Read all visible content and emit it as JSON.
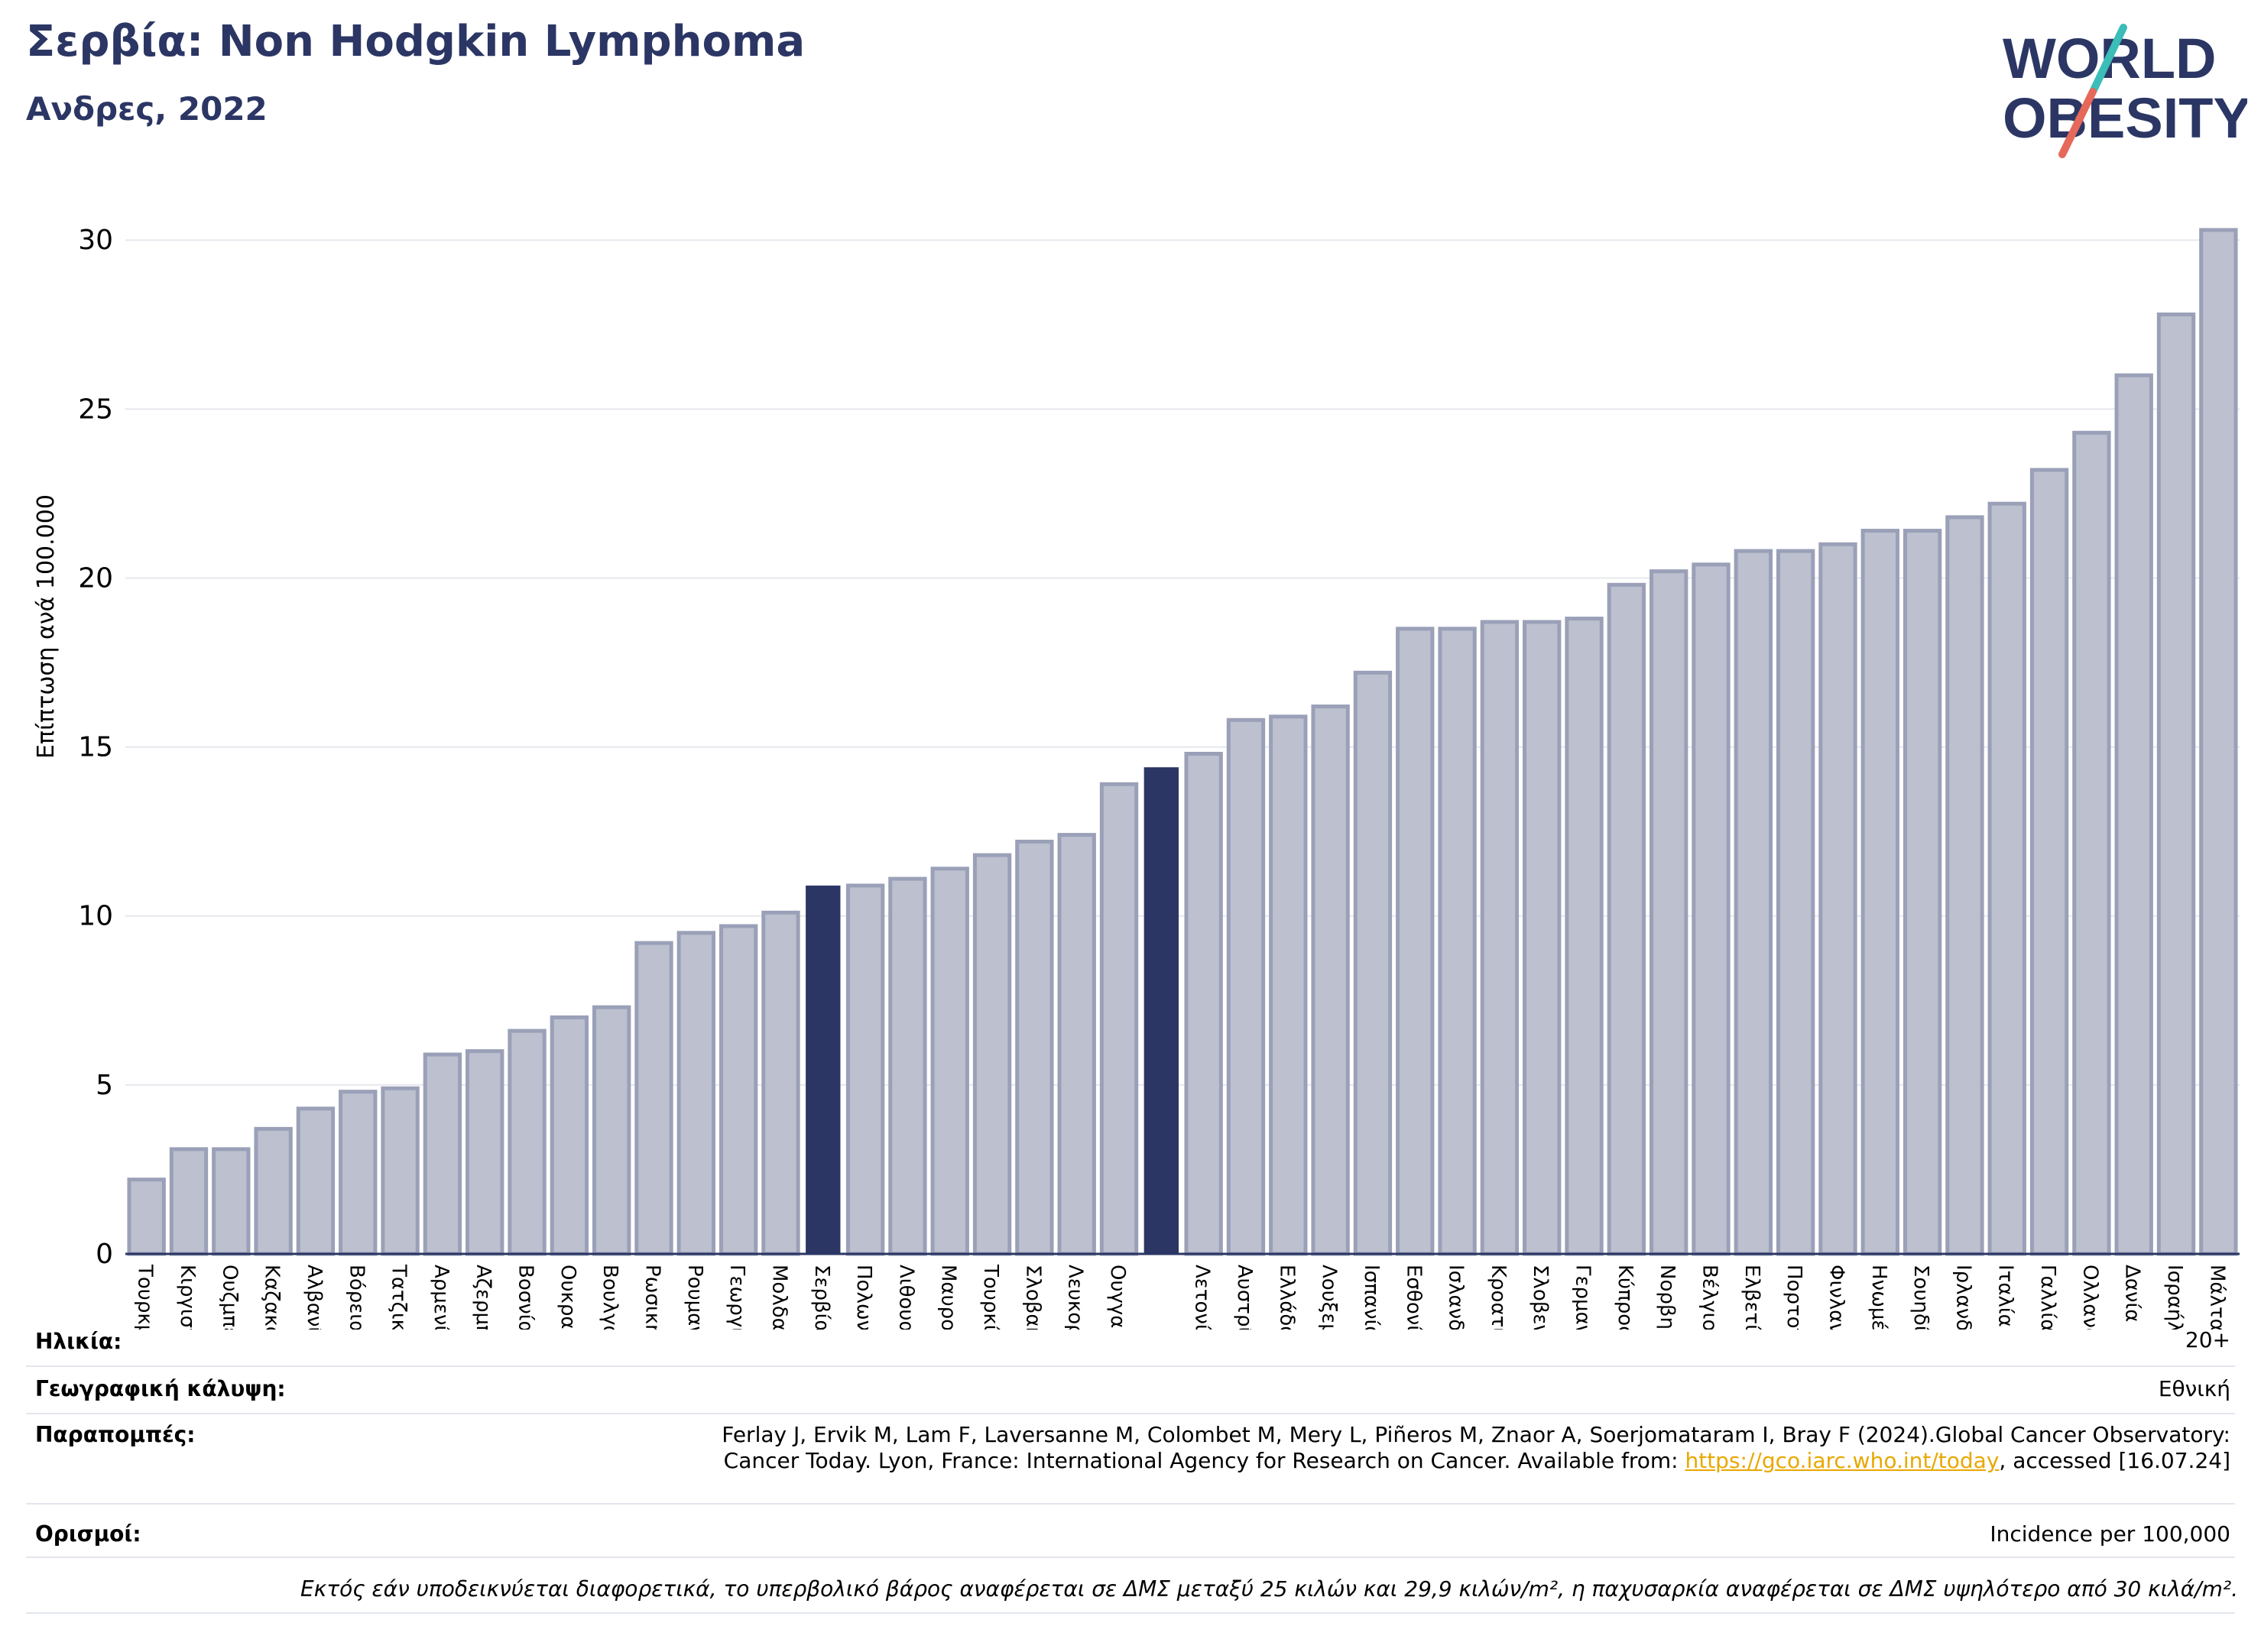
{
  "header": {
    "title": "Σερβία: Non Hodgkin Lymphoma",
    "subtitle": "Ανδρες, 2022",
    "logo_line1": "WORLD",
    "logo_line2": "OBESITY"
  },
  "colors": {
    "title": "#2b3664",
    "bar": "#bcc0cf",
    "bar_edge": "#9aa0b7",
    "bar_highlight": "#2b3664",
    "grid": "#e6e8ee",
    "logo_teal": "#3bbdb8",
    "logo_red": "#e5685a",
    "link": "#e8a800"
  },
  "chart_data": {
    "type": "bar",
    "ylabel": "Επίπτωση ανά 100.000",
    "ylim": [
      0,
      31
    ],
    "yticks": [
      0,
      5,
      10,
      15,
      20,
      25,
      30
    ],
    "grid": true,
    "categories": [
      "Τουρκμενιστάν",
      "Κιργιστάν",
      "Ουζμπεκιστάν",
      "Καζακστάν",
      "Αλβανία",
      "Βόρεια Μακεδονία",
      "Τατζικιστάν",
      "Αρμενία",
      "Αζερμπαϊτζάν",
      "Βοσνία και Ερζεγοβίνη",
      "Ουκρανία",
      "Βουλγαρία",
      "Ρωσική Ομοσπονδία",
      "Ρουμανία",
      "Γεωργία",
      "Μολδαβία",
      "Σερβία",
      "Πολωνία",
      "Λιθουανία",
      "Μαυροβούνιο",
      "Τουρκία",
      "Σλοβακία",
      "Λευκορωσία",
      "Ουγγαρία",
      "",
      "Λετονία",
      "Αυστρία",
      "Ελλάδα",
      "Λουξεμβούργο",
      "Ισπανία",
      "Εσθονία",
      "Ισλανδία",
      "Κροατία",
      "Σλοβενία",
      "Γερμανία",
      "Κύπρος",
      "Νορβηγία",
      "Βέλγιο",
      "Ελβετία",
      "Πορτογαλία",
      "Φινλανδία",
      "Ηνωμένο Βασίλειο",
      "Σουηδία",
      "Ιρλανδία",
      "Ιταλία",
      "Γαλλία",
      "Ολλανδία",
      "Δανία",
      "Ισραήλ",
      "Μάλτα"
    ],
    "values": [
      2.2,
      3.1,
      3.1,
      3.7,
      4.3,
      4.8,
      4.9,
      5.9,
      6.0,
      6.6,
      7.0,
      7.3,
      9.2,
      9.5,
      9.7,
      10.1,
      10.9,
      10.9,
      11.1,
      11.4,
      11.8,
      12.2,
      12.4,
      13.9,
      14.4,
      14.8,
      15.8,
      15.9,
      16.2,
      17.2,
      18.5,
      18.5,
      18.7,
      18.7,
      18.8,
      19.8,
      20.2,
      20.4,
      20.8,
      20.8,
      21.0,
      21.4,
      21.4,
      21.8,
      22.2,
      23.2,
      24.3,
      26.0,
      27.8,
      30.3
    ],
    "highlight": [
      16,
      24
    ]
  },
  "meta": {
    "age_label": "Ηλικία:",
    "age_value": "20+",
    "coverage_label": "Γεωγραφική κάλυψη:",
    "coverage_value": "Εθνική",
    "refs_label": "Παραπομπές:",
    "refs_line1": "Ferlay J, Ervik M, Lam F, Laversanne M, Colombet M, Mery L, Piñeros M, Znaor A, Soerjomataram I, Bray F (2024).Global Cancer Observatory:",
    "refs_line2_pre": "Cancer Today. Lyon, France: International Agency for Research on Cancer. Available from: ",
    "refs_link": "https://gco.iarc.who.int/today",
    "refs_line2_post": ", accessed [16.07.24]",
    "defs_label": "Ορισμοί:",
    "defs_value": "Incidence per 100,000",
    "footnote": "Εκτός εάν υποδεικνύεται διαφορετικά, το υπερβολικό βάρος αναφέρεται σε ΔΜΣ μεταξύ 25 κιλών και 29,9 κιλών/m², η παχυσαρκία αναφέρεται σε ΔΜΣ υψηλότερο από 30 κιλά/m²."
  }
}
